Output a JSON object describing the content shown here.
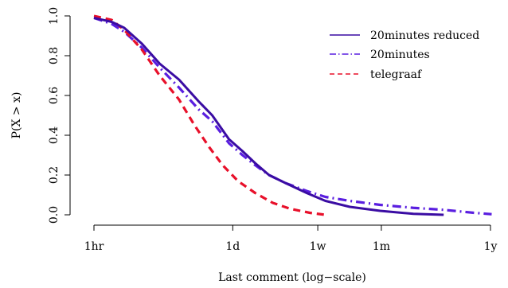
{
  "chart_data": {
    "type": "line",
    "xlabel": "Last comment (log−scale)",
    "ylabel": "P(X > x)",
    "x_scale": "log",
    "x_unit": "hours",
    "x_ticks": [
      {
        "label": "1hr",
        "value": 1
      },
      {
        "label": "1d",
        "value": 24
      },
      {
        "label": "1w",
        "value": 168
      },
      {
        "label": "1m",
        "value": 720
      },
      {
        "label": "1y",
        "value": 8760
      }
    ],
    "y_ticks": [
      "0.0",
      "0.2",
      "0.4",
      "0.6",
      "0.8",
      "1.0"
    ],
    "ylim": [
      0,
      1
    ],
    "legend_position": "top-right",
    "series": [
      {
        "name": "20minutes reduced",
        "color": "#3a0ca3",
        "style": "solid",
        "points": [
          [
            1,
            0.99
          ],
          [
            1.5,
            0.97
          ],
          [
            2,
            0.94
          ],
          [
            3,
            0.86
          ],
          [
            4.5,
            0.76
          ],
          [
            7,
            0.68
          ],
          [
            11,
            0.57
          ],
          [
            15,
            0.5
          ],
          [
            22,
            0.38
          ],
          [
            30,
            0.32
          ],
          [
            40,
            0.26
          ],
          [
            55,
            0.2
          ],
          [
            80,
            0.16
          ],
          [
            130,
            0.11
          ],
          [
            200,
            0.07
          ],
          [
            350,
            0.04
          ],
          [
            700,
            0.02
          ],
          [
            1500,
            0.005
          ],
          [
            3000,
            0.0
          ]
        ]
      },
      {
        "name": "20minutes",
        "color": "#5a1ee0",
        "style": "dashdot",
        "points": [
          [
            1,
            0.99
          ],
          [
            1.5,
            0.96
          ],
          [
            2,
            0.92
          ],
          [
            3,
            0.84
          ],
          [
            4.5,
            0.74
          ],
          [
            7,
            0.64
          ],
          [
            11,
            0.53
          ],
          [
            15,
            0.47
          ],
          [
            22,
            0.36
          ],
          [
            30,
            0.3
          ],
          [
            40,
            0.25
          ],
          [
            55,
            0.2
          ],
          [
            80,
            0.16
          ],
          [
            130,
            0.12
          ],
          [
            200,
            0.09
          ],
          [
            350,
            0.07
          ],
          [
            700,
            0.05
          ],
          [
            1500,
            0.035
          ],
          [
            3000,
            0.025
          ],
          [
            6000,
            0.01
          ],
          [
            9000,
            0.003
          ]
        ]
      },
      {
        "name": "telegraaf",
        "color": "#e8102a",
        "style": "dashed",
        "points": [
          [
            1,
            1.0
          ],
          [
            1.5,
            0.98
          ],
          [
            2,
            0.93
          ],
          [
            3,
            0.83
          ],
          [
            4.5,
            0.7
          ],
          [
            7,
            0.58
          ],
          [
            10,
            0.45
          ],
          [
            14,
            0.34
          ],
          [
            19,
            0.25
          ],
          [
            27,
            0.17
          ],
          [
            40,
            0.11
          ],
          [
            60,
            0.06
          ],
          [
            90,
            0.03
          ],
          [
            140,
            0.01
          ],
          [
            200,
            0.0
          ]
        ]
      }
    ]
  }
}
